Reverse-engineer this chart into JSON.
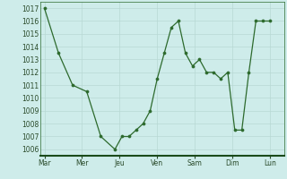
{
  "x_values": [
    0,
    0.5,
    1.0,
    1.5,
    2.0,
    2.5,
    2.75,
    3.0,
    3.25,
    3.5,
    3.75,
    4.0,
    4.25,
    4.5,
    4.75,
    5.0,
    5.25,
    5.5,
    5.75,
    6.0,
    6.25,
    6.5,
    6.75,
    7.0,
    7.25,
    7.5,
    7.75,
    8.0
  ],
  "y_values": [
    1017,
    1013.5,
    1011,
    1010.5,
    1007,
    1006,
    1007,
    1007,
    1007.5,
    1008,
    1009,
    1011.5,
    1013.5,
    1015.5,
    1016,
    1013.5,
    1012.5,
    1013,
    1012,
    1012,
    1011.5,
    1012,
    1007.5,
    1007.5,
    1012,
    1016,
    1016,
    1016
  ],
  "day_tick_positions": [
    0,
    1.333,
    2.667,
    4.0,
    5.333,
    6.667,
    8.0
  ],
  "day_labels": [
    "Mar",
    "Mer",
    "Jeu",
    "Ven",
    "Sam",
    "Dim",
    "Lun"
  ],
  "line_color": "#2d6a2d",
  "marker_color": "#2d6a2d",
  "bg_color": "#ceecea",
  "grid_color": "#b8d8d4",
  "ylim_min": 1005.5,
  "ylim_max": 1017.5,
  "xlim_min": -0.15,
  "xlim_max": 8.5
}
